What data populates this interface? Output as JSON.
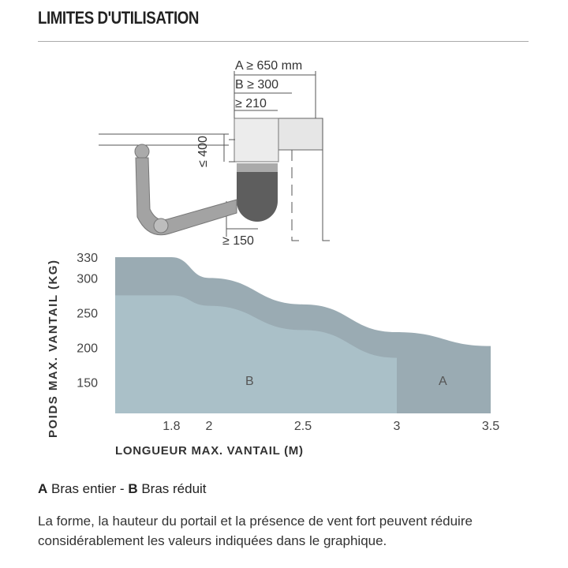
{
  "title": "LIMITES D'UTILISATION",
  "diagram": {
    "dim_a": "A ≥ 650 mm",
    "dim_b": "B ≥ 300",
    "dim_210": "≥ 210",
    "dim_400": "≤ 400",
    "dim_150": "≥ 150"
  },
  "chart_data": {
    "type": "area",
    "xlabel": "LONGUEUR MAX. VANTAIL (M)",
    "ylabel": "POIDS MAX. VANTAIL (KG)",
    "xlim": [
      1.5,
      3.5
    ],
    "ylim": [
      105,
      330
    ],
    "x_ticks": [
      "1.8",
      "2",
      "2.5",
      "3",
      "3.5"
    ],
    "y_ticks": [
      "330",
      "300",
      "250",
      "200",
      "150"
    ],
    "grid": false,
    "series": [
      {
        "name": "A",
        "color": "#9aabb3",
        "points": [
          [
            1.5,
            330
          ],
          [
            1.8,
            330
          ],
          [
            2,
            300
          ],
          [
            2.5,
            262
          ],
          [
            3,
            222
          ],
          [
            3.5,
            202
          ]
        ]
      },
      {
        "name": "B",
        "color": "#aac0c8",
        "points": [
          [
            1.5,
            275
          ],
          [
            1.8,
            275
          ],
          [
            2,
            260
          ],
          [
            2.5,
            225
          ],
          [
            3,
            185
          ]
        ]
      }
    ]
  },
  "legend": {
    "a_key": "A",
    "a_text": " Bras entier - ",
    "b_key": "B",
    "b_text": " Bras réduit"
  },
  "note": "La forme, la hauteur du portail et la présence de vent fort peuvent réduire considérablement les valeurs indiquées dans le graphique."
}
